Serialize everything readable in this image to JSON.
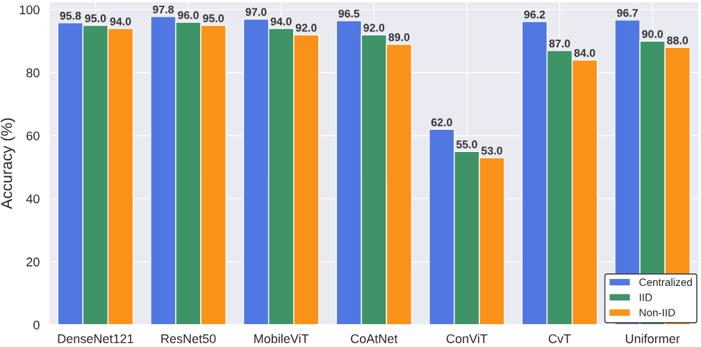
{
  "chart_data": {
    "type": "bar",
    "ylabel": "Accuracy (%)",
    "categories": [
      "DenseNet121",
      "ResNet50",
      "MobileViT",
      "CoAtNet",
      "ConViT",
      "CvT",
      "Uniformer"
    ],
    "series": [
      {
        "name": "Centralized",
        "color": "#5177e2",
        "values": [
          95.8,
          97.8,
          97.0,
          96.5,
          62.0,
          96.2,
          96.7
        ],
        "value_labels": [
          "95.8",
          "97.8",
          "97.0",
          "96.5",
          "62.0",
          "96.2",
          "96.7"
        ]
      },
      {
        "name": "IID",
        "color": "#3e9467",
        "values": [
          95.0,
          96.0,
          94.0,
          92.0,
          55.0,
          87.0,
          90.0
        ],
        "value_labels": [
          "95.0",
          "96.0",
          "94.0",
          "92.0",
          "55.0",
          "87.0",
          "90.0"
        ]
      },
      {
        "name": "Non-IID",
        "color": "#fa9219",
        "values": [
          94.0,
          95.0,
          92.0,
          89.0,
          53.0,
          84.0,
          88.0
        ],
        "value_labels": [
          "94.0",
          "95.0",
          "92.0",
          "89.0",
          "53.0",
          "84.0",
          "88.0"
        ]
      }
    ],
    "ylim": [
      0,
      102.5
    ],
    "yticks": [
      0,
      20,
      40,
      60,
      80,
      100
    ],
    "grid": true,
    "legend": "bottom right"
  }
}
